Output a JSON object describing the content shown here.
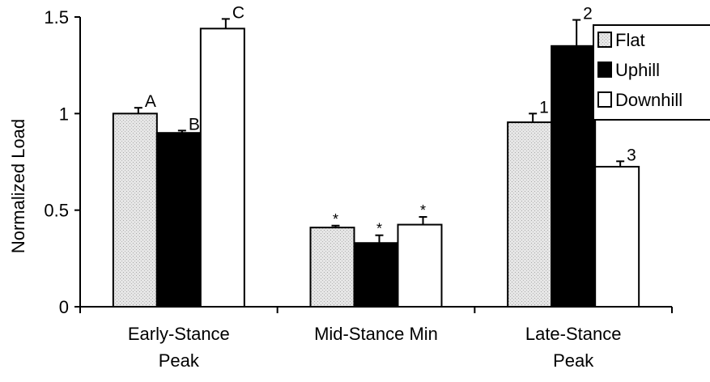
{
  "chart_data": {
    "type": "bar",
    "categories": [
      "Early-Stance\nPeak",
      "Mid-Stance Min",
      "Late-Stance\nPeak"
    ],
    "ylabel": "Normalized Load",
    "xlabel": "",
    "ylim": [
      0,
      1.5
    ],
    "yticks": [
      "0",
      "0.5",
      "1",
      "1.5"
    ],
    "grid": false,
    "legend_position": "top-right",
    "series": [
      {
        "name": "Flat",
        "values": [
          1.0,
          0.41,
          0.955
        ],
        "errors": [
          0.03,
          0.01,
          0.045
        ],
        "color": "#d9d9d9",
        "labels": [
          "A",
          "*",
          "1"
        ]
      },
      {
        "name": "Uphill",
        "values": [
          0.9,
          0.33,
          1.35
        ],
        "errors": [
          0.012,
          0.04,
          0.135
        ],
        "color": "#000000",
        "labels": [
          "B",
          "*",
          "2"
        ]
      },
      {
        "name": "Downhill",
        "values": [
          1.44,
          0.425,
          0.725
        ],
        "errors": [
          0.05,
          0.04,
          0.028
        ],
        "color": "#ffffff",
        "labels": [
          "C",
          "*",
          "3"
        ]
      }
    ]
  }
}
